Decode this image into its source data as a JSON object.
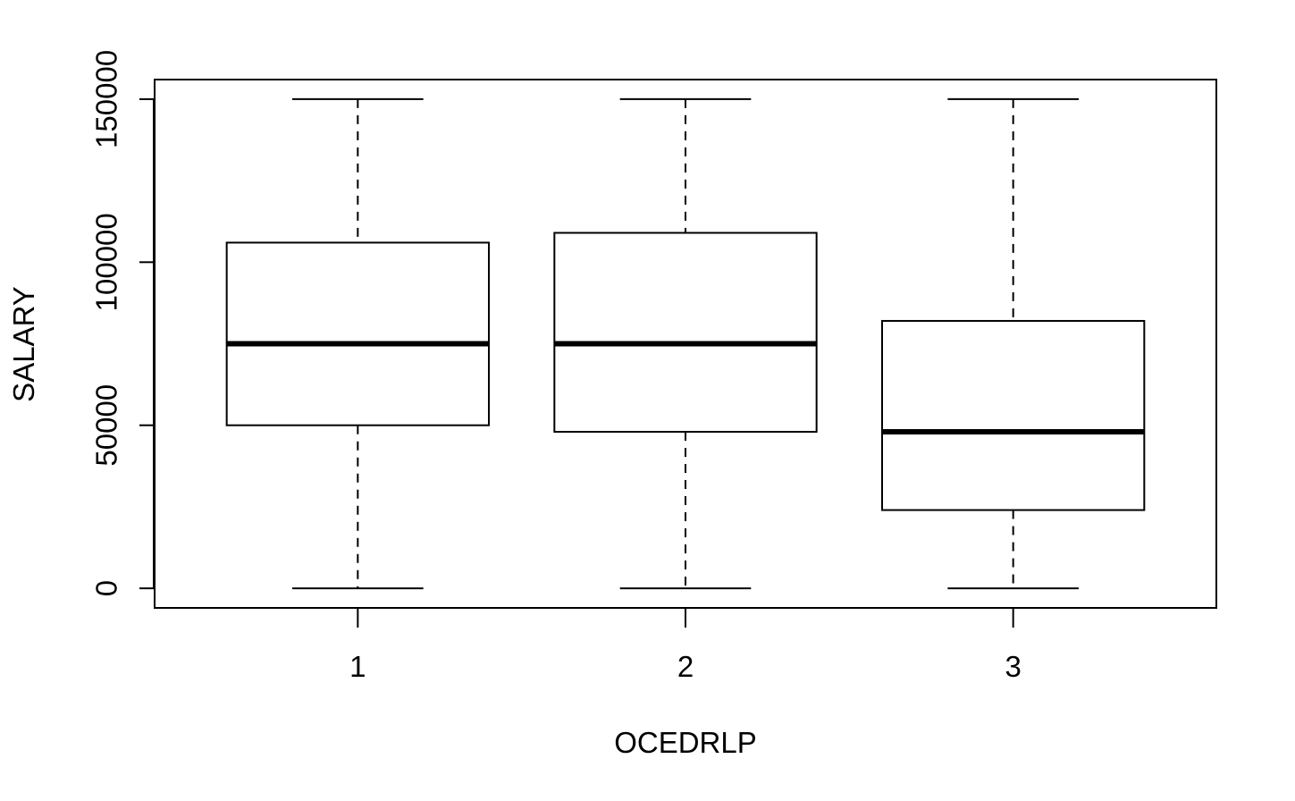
{
  "chart_data": {
    "type": "box",
    "title": "",
    "xlabel": "OCEDRLP",
    "ylabel": "SALARY",
    "ylim": [
      -6000,
      156000
    ],
    "yticks": [
      0,
      50000,
      100000,
      150000
    ],
    "ytick_labels": [
      "0",
      "50000",
      "100000",
      "150000"
    ],
    "categories": [
      "1",
      "2",
      "3"
    ],
    "boxes": [
      {
        "category": "1",
        "whisker_low": 0,
        "q1": 50000,
        "median": 75000,
        "q3": 106000,
        "whisker_high": 150000
      },
      {
        "category": "2",
        "whisker_low": 0,
        "q1": 48000,
        "median": 75000,
        "q3": 109000,
        "whisker_high": 150000
      },
      {
        "category": "3",
        "whisker_low": 0,
        "q1": 24000,
        "median": 48000,
        "q3": 82000,
        "whisker_high": 150000
      }
    ],
    "grid": false,
    "legend": "none",
    "colors": {
      "box_fill": "#ffffff",
      "stroke": "#000000"
    }
  }
}
